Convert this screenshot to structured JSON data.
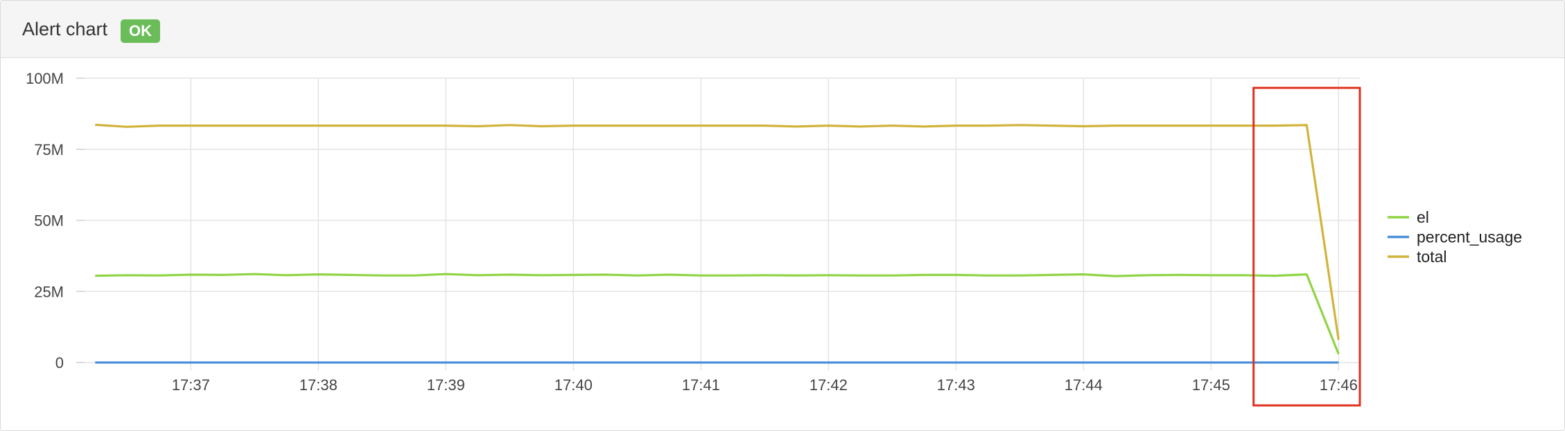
{
  "panel": {
    "title": "Alert chart",
    "status": "OK",
    "status_color": "#6bbd5a"
  },
  "highlight": {
    "color": "#e0301e",
    "x_range": [
      "17:45:20",
      "17:46:10"
    ]
  },
  "chart_data": {
    "type": "line",
    "title": "",
    "xlabel": "",
    "ylabel": "",
    "ylim": [
      0,
      100000000
    ],
    "yticks": [
      {
        "value": 0,
        "label": "0"
      },
      {
        "value": 25000000,
        "label": "25M"
      },
      {
        "value": 50000000,
        "label": "50M"
      },
      {
        "value": 75000000,
        "label": "75M"
      },
      {
        "value": 100000000,
        "label": "100M"
      }
    ],
    "xlim": [
      "17:36:10",
      "17:46:10"
    ],
    "xticks": [
      "17:37",
      "17:38",
      "17:39",
      "17:40",
      "17:41",
      "17:42",
      "17:43",
      "17:44",
      "17:45",
      "17:46"
    ],
    "grid": true,
    "legend_position": "right",
    "x": [
      "17:36:15",
      "17:36:30",
      "17:36:45",
      "17:37:00",
      "17:37:15",
      "17:37:30",
      "17:37:45",
      "17:38:00",
      "17:38:15",
      "17:38:30",
      "17:38:45",
      "17:39:00",
      "17:39:15",
      "17:39:30",
      "17:39:45",
      "17:40:00",
      "17:40:15",
      "17:40:30",
      "17:40:45",
      "17:41:00",
      "17:41:15",
      "17:41:30",
      "17:41:45",
      "17:42:00",
      "17:42:15",
      "17:42:30",
      "17:42:45",
      "17:43:00",
      "17:43:15",
      "17:43:30",
      "17:43:45",
      "17:44:00",
      "17:44:15",
      "17:44:30",
      "17:44:45",
      "17:45:00",
      "17:45:15",
      "17:45:30",
      "17:45:45",
      "17:46:00"
    ],
    "series": [
      {
        "name": "el",
        "color": "#8fd444",
        "values": [
          30500000,
          30700000,
          30600000,
          30900000,
          30800000,
          31100000,
          30700000,
          31000000,
          30800000,
          30600000,
          30600000,
          31100000,
          30700000,
          30900000,
          30700000,
          30800000,
          30900000,
          30600000,
          30900000,
          30600000,
          30600000,
          30700000,
          30600000,
          30700000,
          30600000,
          30600000,
          30800000,
          30800000,
          30600000,
          30600000,
          30800000,
          31000000,
          30400000,
          30700000,
          30800000,
          30700000,
          30700000,
          30500000,
          31000000,
          3000000
        ]
      },
      {
        "name": "percent_usage",
        "color": "#4b8fdb",
        "values": [
          60,
          60,
          60,
          60,
          60,
          60,
          60,
          60,
          60,
          60,
          60,
          60,
          60,
          60,
          60,
          60,
          60,
          60,
          60,
          60,
          60,
          60,
          60,
          60,
          60,
          60,
          60,
          60,
          60,
          60,
          60,
          60,
          60,
          60,
          60,
          60,
          60,
          60,
          60,
          60
        ]
      },
      {
        "name": "total",
        "color": "#d1b33a",
        "values": [
          83600000,
          82900000,
          83300000,
          83300000,
          83300000,
          83300000,
          83300000,
          83300000,
          83300000,
          83300000,
          83300000,
          83300000,
          83100000,
          83500000,
          83100000,
          83300000,
          83300000,
          83300000,
          83300000,
          83300000,
          83300000,
          83300000,
          83000000,
          83300000,
          83000000,
          83300000,
          83000000,
          83300000,
          83300000,
          83500000,
          83300000,
          83100000,
          83300000,
          83300000,
          83300000,
          83300000,
          83300000,
          83300000,
          83500000,
          8000000
        ]
      }
    ]
  }
}
